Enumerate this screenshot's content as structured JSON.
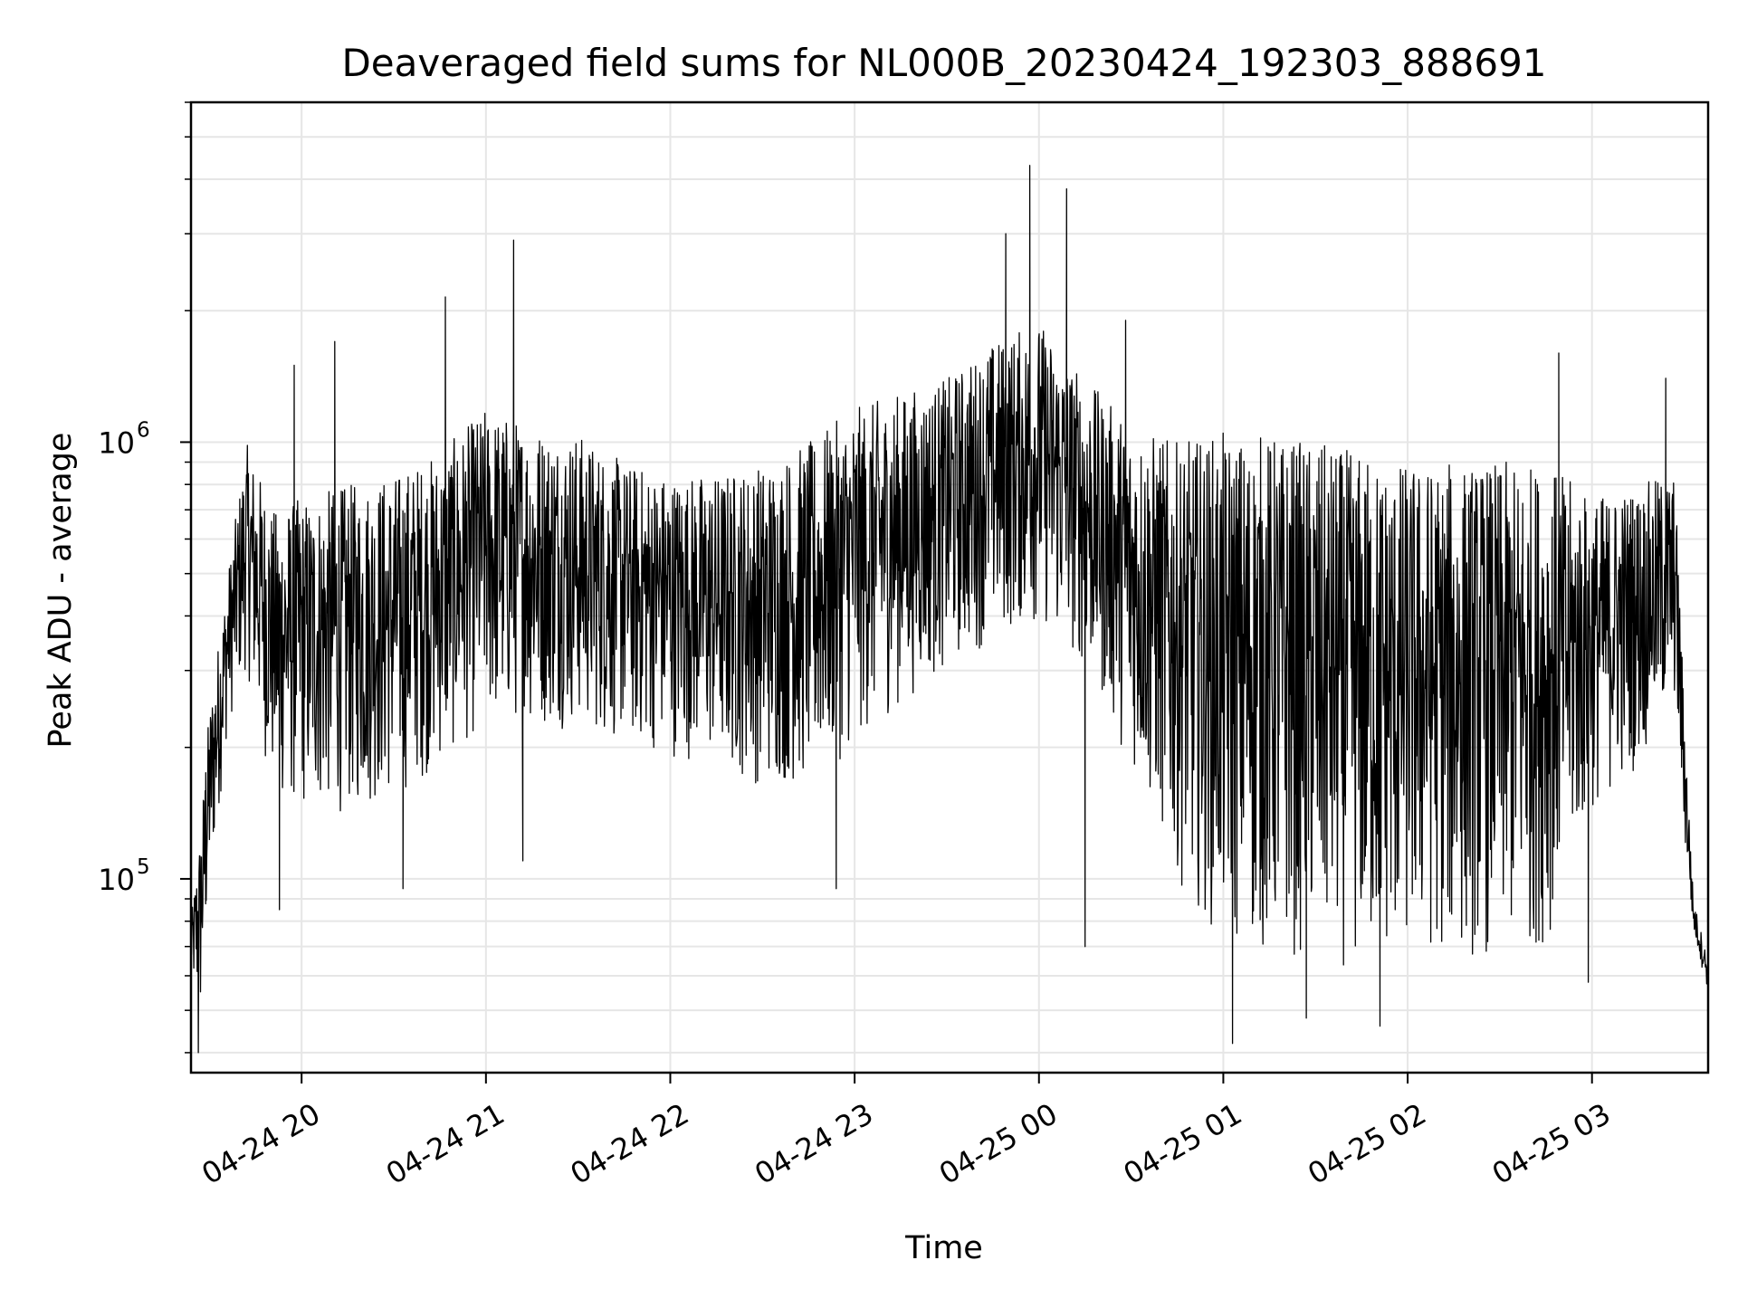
{
  "chart_data": {
    "type": "line",
    "title": "Deaveraged field sums for NL000B_20230424_192303_888691",
    "xlabel": "Time",
    "ylabel": "Peak ADU - average",
    "x_tick_labels": [
      "04-24 20",
      "04-24 21",
      "04-24 22",
      "04-24 23",
      "04-25 00",
      "04-25 01",
      "04-25 02",
      "04-25 03"
    ],
    "x_tick_hours": [
      20,
      21,
      22,
      23,
      24,
      25,
      26,
      27
    ],
    "y_tick_labels": [
      {
        "base": "10",
        "exp": "5",
        "value": 100000
      },
      {
        "base": "10",
        "exp": "6",
        "value": 1000000
      }
    ],
    "xlim_hours": [
      19.4,
      27.63
    ],
    "ylim": [
      36000,
      6000000
    ],
    "y_scale": "log",
    "grid": true,
    "line_color": "#000000",
    "grid_color": "#e6e6e6",
    "series": [
      {
        "envelope": [
          {
            "hour": 19.4,
            "low": 60000,
            "high": 80000
          },
          {
            "hour": 19.45,
            "low": 45000,
            "high": 130000
          },
          {
            "hour": 19.5,
            "low": 90000,
            "high": 250000
          },
          {
            "hour": 19.6,
            "low": 220000,
            "high": 500000
          },
          {
            "hour": 19.7,
            "low": 300000,
            "high": 1000000
          },
          {
            "hour": 19.85,
            "low": 150000,
            "high": 700000
          },
          {
            "hour": 20.0,
            "low": 140000,
            "high": 750000
          },
          {
            "hour": 20.25,
            "low": 140000,
            "high": 800000
          },
          {
            "hour": 20.5,
            "low": 150000,
            "high": 850000
          },
          {
            "hour": 20.75,
            "low": 180000,
            "high": 950000
          },
          {
            "hour": 21.0,
            "low": 220000,
            "high": 1200000
          },
          {
            "hour": 21.25,
            "low": 220000,
            "high": 1100000
          },
          {
            "hour": 21.5,
            "low": 220000,
            "high": 1050000
          },
          {
            "hour": 21.75,
            "low": 200000,
            "high": 900000
          },
          {
            "hour": 22.0,
            "low": 190000,
            "high": 850000
          },
          {
            "hour": 22.25,
            "low": 180000,
            "high": 850000
          },
          {
            "hour": 22.5,
            "low": 160000,
            "high": 900000
          },
          {
            "hour": 22.75,
            "low": 160000,
            "high": 1000000
          },
          {
            "hour": 23.0,
            "low": 200000,
            "high": 1200000
          },
          {
            "hour": 23.25,
            "low": 250000,
            "high": 1300000
          },
          {
            "hour": 23.5,
            "low": 300000,
            "high": 1400000
          },
          {
            "hour": 23.75,
            "low": 350000,
            "high": 1700000
          },
          {
            "hour": 24.0,
            "low": 380000,
            "high": 1900000
          },
          {
            "hour": 24.25,
            "low": 300000,
            "high": 1400000
          },
          {
            "hour": 24.5,
            "low": 180000,
            "high": 1100000
          },
          {
            "hour": 24.75,
            "low": 100000,
            "high": 1000000
          },
          {
            "hour": 25.0,
            "low": 70000,
            "high": 1050000
          },
          {
            "hour": 25.25,
            "low": 65000,
            "high": 1050000
          },
          {
            "hour": 25.5,
            "low": 65000,
            "high": 1000000
          },
          {
            "hour": 25.75,
            "low": 60000,
            "high": 950000
          },
          {
            "hour": 26.0,
            "low": 65000,
            "high": 900000
          },
          {
            "hour": 26.25,
            "low": 65000,
            "high": 900000
          },
          {
            "hour": 26.5,
            "low": 65000,
            "high": 900000
          },
          {
            "hour": 26.75,
            "low": 70000,
            "high": 900000
          },
          {
            "hour": 27.0,
            "low": 140000,
            "high": 750000
          },
          {
            "hour": 27.25,
            "low": 180000,
            "high": 800000
          },
          {
            "hour": 27.45,
            "low": 250000,
            "high": 850000
          },
          {
            "hour": 27.5,
            "low": 120000,
            "high": 250000
          },
          {
            "hour": 27.55,
            "low": 75000,
            "high": 90000
          },
          {
            "hour": 27.63,
            "low": 55000,
            "high": 65000
          }
        ],
        "spikes": [
          {
            "hour": 19.44,
            "value": 40000
          },
          {
            "hour": 19.48,
            "value": 175000
          },
          {
            "hour": 19.88,
            "value": 85000
          },
          {
            "hour": 19.96,
            "value": 1500000
          },
          {
            "hour": 20.18,
            "value": 1700000
          },
          {
            "hour": 20.55,
            "value": 95000
          },
          {
            "hour": 20.78,
            "value": 2150000
          },
          {
            "hour": 21.15,
            "value": 2900000
          },
          {
            "hour": 21.2,
            "value": 110000
          },
          {
            "hour": 22.9,
            "value": 95000
          },
          {
            "hour": 23.82,
            "value": 3000000
          },
          {
            "hour": 23.95,
            "value": 4300000
          },
          {
            "hour": 24.15,
            "value": 3800000
          },
          {
            "hour": 24.25,
            "value": 70000
          },
          {
            "hour": 24.47,
            "value": 1900000
          },
          {
            "hour": 25.05,
            "value": 42000
          },
          {
            "hour": 25.45,
            "value": 48000
          },
          {
            "hour": 25.85,
            "value": 46000
          },
          {
            "hour": 26.82,
            "value": 1600000
          },
          {
            "hour": 26.98,
            "value": 58000
          },
          {
            "hour": 27.4,
            "value": 1400000
          }
        ]
      }
    ]
  }
}
